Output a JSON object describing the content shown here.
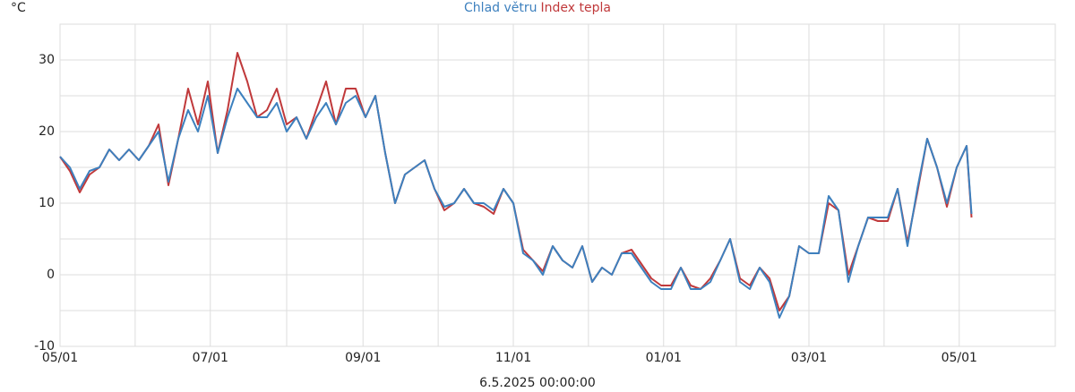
{
  "chart_data": {
    "type": "line",
    "y_label": "°C",
    "footer": "6.5.2025 00:00:00",
    "grid": true,
    "legend": "top",
    "xlim": [
      "05/01",
      "06/09"
    ],
    "xticks": [
      "05/01",
      "07/01",
      "09/01",
      "11/01",
      "01/01",
      "03/01",
      "05/01"
    ],
    "ylim": [
      -10,
      35
    ],
    "yticks": [
      -10,
      0,
      10,
      20,
      30
    ],
    "x": [
      "05/01",
      "05/05",
      "05/09",
      "05/13",
      "05/17",
      "05/21",
      "05/25",
      "05/29",
      "06/02",
      "06/06",
      "06/10",
      "06/14",
      "06/18",
      "06/22",
      "06/26",
      "06/30",
      "07/04",
      "07/08",
      "07/12",
      "07/16",
      "07/20",
      "07/24",
      "07/28",
      "08/01",
      "08/05",
      "08/09",
      "08/13",
      "08/17",
      "08/21",
      "08/25",
      "08/29",
      "09/02",
      "09/06",
      "09/10",
      "09/14",
      "09/18",
      "09/22",
      "09/26",
      "09/30",
      "10/04",
      "10/08",
      "10/12",
      "10/16",
      "10/20",
      "10/24",
      "10/28",
      "11/01",
      "11/05",
      "11/09",
      "11/13",
      "11/17",
      "11/21",
      "11/25",
      "11/29",
      "12/03",
      "12/07",
      "12/11",
      "12/15",
      "12/19",
      "12/23",
      "12/27",
      "12/31",
      "01/04",
      "01/08",
      "01/12",
      "01/16",
      "01/20",
      "01/24",
      "01/28",
      "02/01",
      "02/05",
      "02/09",
      "02/13",
      "02/17",
      "02/21",
      "02/25",
      "03/01",
      "03/05",
      "03/09",
      "03/13",
      "03/17",
      "03/21",
      "03/25",
      "03/29",
      "04/02",
      "04/06",
      "04/10",
      "04/14",
      "04/18",
      "04/22",
      "04/26",
      "04/30",
      "05/04",
      "05/06"
    ],
    "series": [
      {
        "name": "Index tepla",
        "color": "#c0393b",
        "values": [
          16.5,
          14.5,
          11.5,
          14,
          15,
          17.5,
          16,
          17.5,
          16,
          18,
          21,
          12.5,
          19,
          26,
          21,
          27,
          17,
          23,
          31,
          27,
          22,
          23,
          26,
          21,
          22,
          19,
          23,
          27,
          21,
          26,
          26,
          22,
          25,
          17,
          10,
          14,
          15,
          16,
          12,
          9,
          10,
          12,
          10,
          9.5,
          8.5,
          12,
          10,
          3.5,
          2,
          0.5,
          4,
          2,
          1,
          4,
          -1,
          1,
          0,
          3,
          3.5,
          1.5,
          -0.5,
          -1.5,
          -1.5,
          1,
          -1.5,
          -2,
          -0.5,
          2,
          5,
          -0.5,
          -1.5,
          1,
          -0.5,
          -5,
          -3,
          4,
          3,
          3,
          10,
          9,
          0,
          4,
          8,
          7.5,
          7.5,
          12,
          4.5,
          11.5,
          19,
          15,
          9.5,
          15,
          18,
          8
        ]
      },
      {
        "name": "Chlad větru",
        "color": "#3d80be",
        "values": [
          16.5,
          15,
          12,
          14.5,
          15,
          17.5,
          16,
          17.5,
          16,
          18,
          20,
          13,
          19,
          23,
          20,
          25,
          17,
          22,
          26,
          24,
          22,
          22,
          24,
          20,
          22,
          19,
          22,
          24,
          21,
          24,
          25,
          22,
          25,
          17,
          10,
          14,
          15,
          16,
          12,
          9.5,
          10,
          12,
          10,
          10,
          9,
          12,
          10,
          3,
          2,
          0,
          4,
          2,
          1,
          4,
          -1,
          1,
          0,
          3,
          3,
          1,
          -1,
          -2,
          -2,
          1,
          -2,
          -2,
          -1,
          2,
          5,
          -1,
          -2,
          1,
          -1,
          -6,
          -3,
          4,
          3,
          3,
          11,
          9,
          -1,
          4,
          8,
          8,
          8,
          12,
          4,
          12,
          19,
          15,
          10,
          15,
          18,
          8.5
        ]
      }
    ]
  }
}
